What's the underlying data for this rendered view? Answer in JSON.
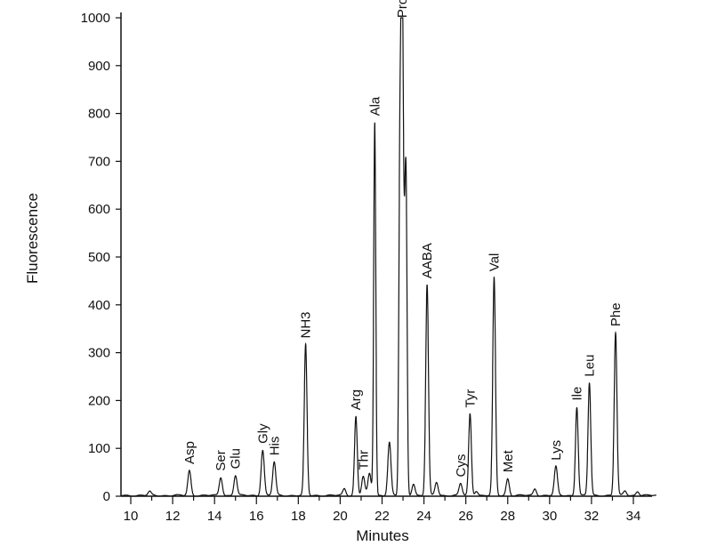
{
  "chart_data": {
    "type": "line",
    "xlabel": "Minutes",
    "ylabel": "Fluorescence",
    "xlim": [
      9.5,
      35.2
    ],
    "ylim": [
      0,
      1000
    ],
    "x_ticks": [
      10,
      12,
      14,
      16,
      18,
      20,
      22,
      24,
      26,
      28,
      30,
      32,
      34
    ],
    "y_ticks": [
      0,
      100,
      200,
      300,
      400,
      500,
      600,
      700,
      800,
      900,
      1000
    ],
    "grid": false,
    "peaks": [
      {
        "label": "Asp",
        "x": 12.8,
        "y": 52
      },
      {
        "label": "Ser",
        "x": 14.3,
        "y": 38
      },
      {
        "label": "Glu",
        "x": 15.0,
        "y": 42
      },
      {
        "label": "Gly",
        "x": 16.3,
        "y": 95
      },
      {
        "label": "His",
        "x": 16.85,
        "y": 70
      },
      {
        "label": "NH3",
        "x": 18.35,
        "y": 315
      },
      {
        "label": "Arg",
        "x": 20.75,
        "y": 165
      },
      {
        "label": "Thr",
        "x": 21.1,
        "y": 40
      },
      {
        "label": "Ala",
        "x": 21.65,
        "y": 780
      },
      {
        "label": "Pro",
        "x": 22.95,
        "y": 985
      },
      {
        "label": "AABA",
        "x": 24.15,
        "y": 440
      },
      {
        "label": "Cys",
        "x": 25.75,
        "y": 25
      },
      {
        "label": "Tyr",
        "x": 26.2,
        "y": 170
      },
      {
        "label": "Val",
        "x": 27.35,
        "y": 455
      },
      {
        "label": "Met",
        "x": 28.0,
        "y": 35
      },
      {
        "label": "Lys",
        "x": 30.3,
        "y": 60
      },
      {
        "label": "Ile",
        "x": 31.3,
        "y": 185
      },
      {
        "label": "Leu",
        "x": 31.9,
        "y": 235
      },
      {
        "label": "Phe",
        "x": 33.15,
        "y": 340
      }
    ],
    "minor_peaks": [
      {
        "x": 10.9,
        "y": 8
      },
      {
        "x": 20.2,
        "y": 14
      },
      {
        "x": 21.4,
        "y": 45
      },
      {
        "x": 22.35,
        "y": 112
      },
      {
        "x": 22.85,
        "y": 680
      },
      {
        "x": 23.15,
        "y": 540
      },
      {
        "x": 23.05,
        "y": 440
      },
      {
        "x": 23.5,
        "y": 25
      },
      {
        "x": 24.6,
        "y": 28
      },
      {
        "x": 26.5,
        "y": 10
      },
      {
        "x": 29.3,
        "y": 14
      },
      {
        "x": 33.6,
        "y": 10
      },
      {
        "x": 34.2,
        "y": 9
      }
    ]
  }
}
